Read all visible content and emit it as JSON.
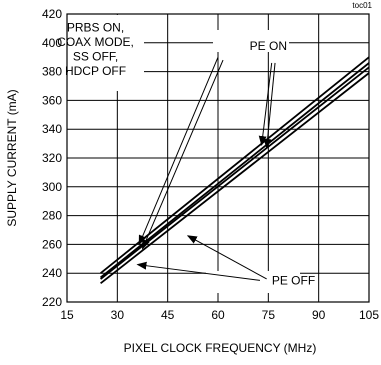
{
  "chart_data": {
    "type": "line",
    "corner_tag": "toc01",
    "xlabel": "PIXEL CLOCK FREQUENCY (MHz)",
    "ylabel": "SUPPLY CURRENT (mA)",
    "xlim": [
      15,
      105
    ],
    "ylim": [
      220,
      420
    ],
    "x_ticks": [
      15,
      30,
      45,
      60,
      75,
      90,
      105
    ],
    "y_ticks": [
      220,
      240,
      260,
      280,
      300,
      320,
      340,
      360,
      380,
      400,
      420
    ],
    "grid": true,
    "series": [
      {
        "group": "PE ON",
        "values": [
          {
            "x": 25,
            "y": 240
          },
          {
            "x": 105,
            "y": 390
          }
        ]
      },
      {
        "group": "PE ON",
        "values": [
          {
            "x": 25,
            "y": 237
          },
          {
            "x": 105,
            "y": 386
          }
        ]
      },
      {
        "group": "PE OFF",
        "values": [
          {
            "x": 25,
            "y": 236
          },
          {
            "x": 105,
            "y": 383
          }
        ]
      },
      {
        "group": "PE OFF",
        "values": [
          {
            "x": 25,
            "y": 233
          },
          {
            "x": 105,
            "y": 379
          }
        ]
      }
    ],
    "annotations": [
      {
        "lines": [
          "PRBS ON,",
          "COAX MODE,",
          "SS OFF,",
          "HDCP OFF"
        ],
        "pos": [
          23.5,
          408
        ]
      },
      {
        "lines": [
          "PE ON"
        ],
        "pos": [
          75,
          395
        ],
        "leaders": [
          {
            "from": [
              60,
              390
            ],
            "to": [
              36.5,
              260
            ]
          },
          {
            "from": [
              61.5,
              388
            ],
            "to": [
              37.5,
              257
            ]
          },
          {
            "from": [
              76,
              386
            ],
            "to": [
              73,
              329
            ]
          },
          {
            "from": [
              77,
              386
            ],
            "to": [
              74.5,
              327
            ]
          }
        ]
      },
      {
        "lines": [
          "PE OFF"
        ],
        "pos": [
          82.5,
          232
        ],
        "leaders": [
          {
            "from": [
              72.5,
              235
            ],
            "to": [
              36,
              246
            ]
          },
          {
            "from": [
              74.5,
              236
            ],
            "to": [
              51,
              266
            ]
          }
        ]
      }
    ]
  }
}
